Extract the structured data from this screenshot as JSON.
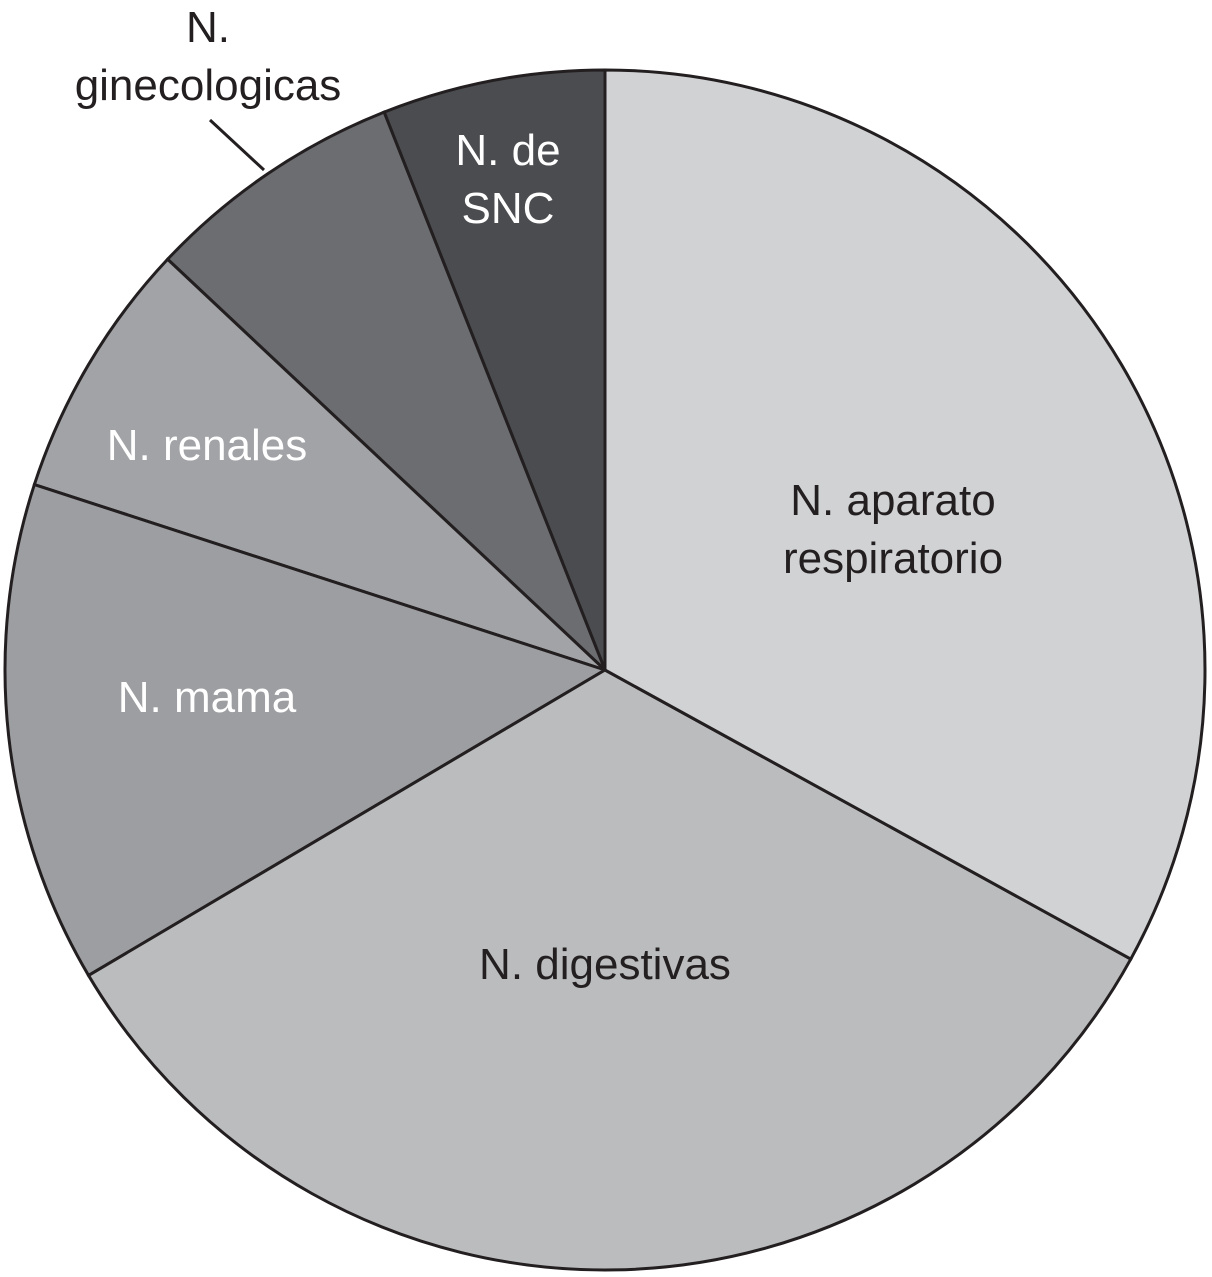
{
  "chart_data": {
    "type": "pie",
    "categories": [
      "N. aparato respiratorio",
      "N. digestivas",
      "N. mama",
      "N. renales",
      "N. ginecologicas",
      "N. de SNC"
    ],
    "values": [
      33,
      33.5,
      13.5,
      7,
      7,
      6
    ],
    "colors": [
      "#d1d2d4",
      "#bbbcbe",
      "#9d9ea1",
      "#a2a3a6",
      "#6c6d71",
      "#4b4c4f"
    ],
    "label_colors": [
      "#231f20",
      "#231f20",
      "#ffffff",
      "#ffffff",
      "#231f20",
      "#ffffff"
    ],
    "start_angle": 0,
    "direction": "clockwise"
  }
}
